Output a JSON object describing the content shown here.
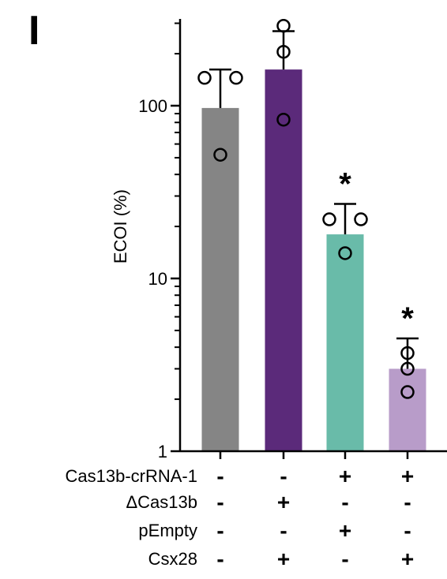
{
  "panel_letter": "I",
  "chart_data": {
    "type": "bar",
    "yscale": "log",
    "ylim": [
      1,
      300
    ],
    "ylabel": "ECOI (%)",
    "yticks": [
      {
        "value": 1,
        "label": "1"
      },
      {
        "value": 10,
        "label": "10"
      },
      {
        "value": 100,
        "label": "100"
      }
    ],
    "colors": [
      "#858585",
      "#5b2a7a",
      "#69bba9",
      "#b89cc9"
    ],
    "bars": [
      {
        "value": 97,
        "error": 162,
        "points": [
          145,
          145,
          52
        ],
        "significance": ""
      },
      {
        "value": 162,
        "error": 270,
        "points": [
          290,
          205,
          83
        ],
        "significance": ""
      },
      {
        "value": 18,
        "error": 27,
        "points": [
          22,
          22,
          14
        ],
        "significance": "*"
      },
      {
        "value": 3,
        "error": 4.5,
        "points": [
          3.7,
          3.0,
          2.2
        ],
        "significance": "*"
      }
    ],
    "condition_rows": [
      {
        "label": "Cas13b-crRNA-1",
        "signs": [
          "-",
          "-",
          "+",
          "+"
        ]
      },
      {
        "label": "ΔCas13b",
        "signs": [
          "-",
          "+",
          "-",
          "-"
        ]
      },
      {
        "label": "pEmpty",
        "signs": [
          "-",
          "-",
          "+",
          "-"
        ]
      },
      {
        "label": "Csx28",
        "signs": [
          "-",
          "+",
          "-",
          "+"
        ]
      }
    ]
  }
}
